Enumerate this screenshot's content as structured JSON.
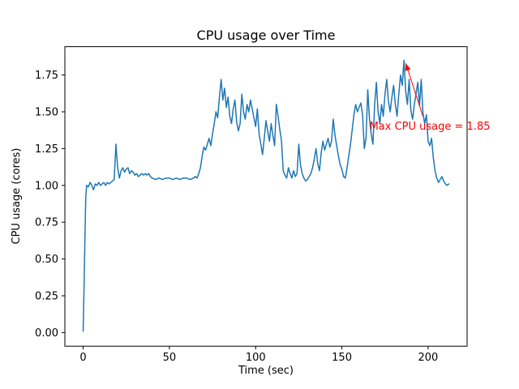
{
  "figure": {
    "background": "#ffffff"
  },
  "chart_data": {
    "type": "line",
    "title": "CPU usage over Time",
    "xlabel": "Time (sec)",
    "ylabel": "CPU usage (cores)",
    "line_color": "#1f77b4",
    "spine_color": "#000000",
    "xlim": [
      -10.6,
      222.6
    ],
    "ylim": [
      -0.0925,
      1.9425
    ],
    "x_ticks": {
      "values": [
        0,
        50,
        100,
        150,
        200
      ],
      "labels": [
        "0",
        "50",
        "100",
        "150",
        "200"
      ]
    },
    "y_ticks": {
      "values": [
        0.0,
        0.25,
        0.5,
        0.75,
        1.0,
        1.25,
        1.5,
        1.75
      ],
      "labels": [
        "0.00",
        "0.25",
        "0.50",
        "0.75",
        "1.00",
        "1.25",
        "1.50",
        "1.75"
      ]
    },
    "annotation": {
      "text": "Max CPU usage = 1.85",
      "color": "#ff0000",
      "text_anchor_data": [
        166,
        1.4
      ],
      "arrow_from_data": [
        197,
        1.47
      ],
      "arrow_to_data": [
        187,
        1.83
      ],
      "max_value": 1.85,
      "max_time": 186
    },
    "points": [
      [
        0,
        0.01
      ],
      [
        0.5,
        0.3
      ],
      [
        1,
        0.62
      ],
      [
        1.5,
        0.92
      ],
      [
        2,
        1.0
      ],
      [
        3,
        0.99
      ],
      [
        4,
        1.02
      ],
      [
        5,
        1.0
      ],
      [
        6,
        0.97
      ],
      [
        7,
        1.01
      ],
      [
        8,
        1.0
      ],
      [
        9,
        1.02
      ],
      [
        10,
        1.0
      ],
      [
        11,
        1.01
      ],
      [
        12,
        1.02
      ],
      [
        13,
        1.0
      ],
      [
        14,
        1.02
      ],
      [
        15,
        1.01
      ],
      [
        16,
        1.02
      ],
      [
        17,
        1.03
      ],
      [
        18,
        1.04
      ],
      [
        19,
        1.28
      ],
      [
        20,
        1.12
      ],
      [
        21,
        1.05
      ],
      [
        22,
        1.1
      ],
      [
        23,
        1.12
      ],
      [
        24,
        1.09
      ],
      [
        25,
        1.11
      ],
      [
        26,
        1.12
      ],
      [
        27,
        1.08
      ],
      [
        28,
        1.1
      ],
      [
        29,
        1.09
      ],
      [
        30,
        1.07
      ],
      [
        31,
        1.08
      ],
      [
        32,
        1.06
      ],
      [
        33,
        1.07
      ],
      [
        34,
        1.08
      ],
      [
        35,
        1.07
      ],
      [
        36,
        1.08
      ],
      [
        37,
        1.07
      ],
      [
        38,
        1.08
      ],
      [
        39,
        1.06
      ],
      [
        40,
        1.05
      ],
      [
        42,
        1.04
      ],
      [
        44,
        1.05
      ],
      [
        46,
        1.04
      ],
      [
        48,
        1.05
      ],
      [
        50,
        1.05
      ],
      [
        52,
        1.04
      ],
      [
        54,
        1.05
      ],
      [
        56,
        1.04
      ],
      [
        58,
        1.05
      ],
      [
        60,
        1.05
      ],
      [
        62,
        1.04
      ],
      [
        64,
        1.05
      ],
      [
        65,
        1.06
      ],
      [
        66,
        1.05
      ],
      [
        67,
        1.08
      ],
      [
        68,
        1.12
      ],
      [
        69,
        1.2
      ],
      [
        70,
        1.26
      ],
      [
        71,
        1.24
      ],
      [
        72,
        1.28
      ],
      [
        73,
        1.32
      ],
      [
        74,
        1.27
      ],
      [
        75,
        1.35
      ],
      [
        76,
        1.42
      ],
      [
        77,
        1.5
      ],
      [
        78,
        1.46
      ],
      [
        79,
        1.6
      ],
      [
        80,
        1.72
      ],
      [
        81,
        1.58
      ],
      [
        82,
        1.66
      ],
      [
        83,
        1.53
      ],
      [
        84,
        1.6
      ],
      [
        85,
        1.47
      ],
      [
        86,
        1.42
      ],
      [
        87,
        1.52
      ],
      [
        88,
        1.58
      ],
      [
        89,
        1.43
      ],
      [
        90,
        1.37
      ],
      [
        91,
        1.42
      ],
      [
        92,
        1.62
      ],
      [
        93,
        1.5
      ],
      [
        94,
        1.45
      ],
      [
        95,
        1.55
      ],
      [
        96,
        1.5
      ],
      [
        97,
        1.58
      ],
      [
        98,
        1.52
      ],
      [
        99,
        1.46
      ],
      [
        100,
        1.4
      ],
      [
        101,
        1.52
      ],
      [
        102,
        1.35
      ],
      [
        103,
        1.28
      ],
      [
        104,
        1.21
      ],
      [
        105,
        1.32
      ],
      [
        106,
        1.44
      ],
      [
        107,
        1.37
      ],
      [
        108,
        1.3
      ],
      [
        109,
        1.42
      ],
      [
        110,
        1.34
      ],
      [
        111,
        1.27
      ],
      [
        112,
        1.55
      ],
      [
        113,
        1.47
      ],
      [
        114,
        1.38
      ],
      [
        115,
        1.3
      ],
      [
        116,
        1.1
      ],
      [
        117,
        1.07
      ],
      [
        118,
        1.05
      ],
      [
        119,
        1.12
      ],
      [
        120,
        1.08
      ],
      [
        121,
        1.05
      ],
      [
        122,
        1.1
      ],
      [
        123,
        1.06
      ],
      [
        124,
        1.08
      ],
      [
        125,
        1.28
      ],
      [
        126,
        1.14
      ],
      [
        127,
        1.08
      ],
      [
        128,
        1.05
      ],
      [
        129,
        1.03
      ],
      [
        130,
        1.04
      ],
      [
        131,
        1.06
      ],
      [
        132,
        1.08
      ],
      [
        133,
        1.12
      ],
      [
        134,
        1.18
      ],
      [
        135,
        1.25
      ],
      [
        136,
        1.15
      ],
      [
        137,
        1.1
      ],
      [
        138,
        1.22
      ],
      [
        139,
        1.3
      ],
      [
        140,
        1.24
      ],
      [
        141,
        1.28
      ],
      [
        142,
        1.32
      ],
      [
        143,
        1.26
      ],
      [
        144,
        1.3
      ],
      [
        145,
        1.45
      ],
      [
        146,
        1.34
      ],
      [
        147,
        1.27
      ],
      [
        148,
        1.2
      ],
      [
        149,
        1.14
      ],
      [
        150,
        1.11
      ],
      [
        151,
        1.06
      ],
      [
        152,
        1.05
      ],
      [
        153,
        1.12
      ],
      [
        154,
        1.2
      ],
      [
        155,
        1.28
      ],
      [
        156,
        1.38
      ],
      [
        157,
        1.48
      ],
      [
        158,
        1.55
      ],
      [
        159,
        1.5
      ],
      [
        160,
        1.53
      ],
      [
        161,
        1.56
      ],
      [
        162,
        1.48
      ],
      [
        163,
        1.25
      ],
      [
        164,
        1.32
      ],
      [
        165,
        1.65
      ],
      [
        166,
        1.45
      ],
      [
        167,
        1.35
      ],
      [
        168,
        1.28
      ],
      [
        169,
        1.55
      ],
      [
        170,
        1.7
      ],
      [
        171,
        1.5
      ],
      [
        172,
        1.42
      ],
      [
        173,
        1.55
      ],
      [
        174,
        1.47
      ],
      [
        175,
        1.62
      ],
      [
        176,
        1.72
      ],
      [
        177,
        1.57
      ],
      [
        178,
        1.5
      ],
      [
        179,
        1.6
      ],
      [
        180,
        1.68
      ],
      [
        181,
        1.55
      ],
      [
        182,
        1.47
      ],
      [
        183,
        1.62
      ],
      [
        184,
        1.75
      ],
      [
        185,
        1.68
      ],
      [
        186,
        1.85
      ],
      [
        187,
        1.64
      ],
      [
        188,
        1.55
      ],
      [
        189,
        1.72
      ],
      [
        190,
        1.51
      ],
      [
        191,
        1.45
      ],
      [
        192,
        1.55
      ],
      [
        193,
        1.62
      ],
      [
        194,
        1.7
      ],
      [
        195,
        1.54
      ],
      [
        196,
        1.72
      ],
      [
        197,
        1.49
      ],
      [
        198,
        1.42
      ],
      [
        199,
        1.48
      ],
      [
        200,
        1.3
      ],
      [
        201,
        1.27
      ],
      [
        202,
        1.32
      ],
      [
        203,
        1.19
      ],
      [
        204,
        1.1
      ],
      [
        205,
        1.05
      ],
      [
        206,
        1.02
      ],
      [
        207,
        1.04
      ],
      [
        208,
        1.06
      ],
      [
        209,
        1.03
      ],
      [
        210,
        1.01
      ],
      [
        211,
        1.0
      ],
      [
        212,
        1.01
      ]
    ]
  }
}
